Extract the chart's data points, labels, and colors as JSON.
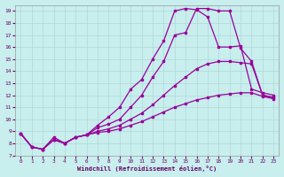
{
  "xlabel": "Windchill (Refroidissement éolien,°C)",
  "xlim": [
    -0.5,
    23.5
  ],
  "ylim": [
    7,
    19.5
  ],
  "yticks": [
    7,
    8,
    9,
    10,
    11,
    12,
    13,
    14,
    15,
    16,
    17,
    18,
    19
  ],
  "xticks": [
    0,
    1,
    2,
    3,
    4,
    5,
    6,
    7,
    8,
    9,
    10,
    11,
    12,
    13,
    14,
    15,
    16,
    17,
    18,
    19,
    20,
    21,
    22,
    23
  ],
  "background_color": "#c8eeee",
  "grid_color": "#b0d8d8",
  "line_color": "#990099",
  "lines": [
    {
      "x": [
        0,
        1,
        2,
        3,
        4,
        5,
        6,
        7,
        8,
        9,
        10,
        11,
        12,
        13,
        14,
        15,
        16,
        17,
        18,
        19,
        20,
        21,
        22,
        23
      ],
      "y": [
        8.8,
        7.7,
        7.5,
        8.5,
        8.0,
        8.5,
        8.7,
        9.5,
        10.2,
        11.0,
        12.5,
        13.3,
        15.0,
        16.5,
        19.0,
        19.2,
        19.1,
        18.5,
        16.0,
        16.0,
        16.1,
        12.5,
        12.2,
        12.0
      ]
    },
    {
      "x": [
        0,
        1,
        2,
        3,
        4,
        5,
        6,
        7,
        8,
        9,
        10,
        11,
        12,
        13,
        14,
        15,
        16,
        17,
        18,
        19,
        20,
        21,
        22,
        23
      ],
      "y": [
        8.8,
        7.7,
        7.5,
        8.3,
        8.0,
        8.5,
        8.7,
        9.3,
        9.6,
        10.0,
        11.0,
        12.0,
        13.5,
        14.8,
        17.0,
        17.2,
        19.2,
        19.2,
        19.0,
        19.0,
        15.9,
        14.8,
        12.0,
        11.8
      ]
    },
    {
      "x": [
        0,
        1,
        2,
        3,
        4,
        5,
        6,
        7,
        8,
        9,
        10,
        11,
        12,
        13,
        14,
        15,
        16,
        17,
        18,
        19,
        20,
        21,
        22,
        23
      ],
      "y": [
        8.8,
        7.7,
        7.5,
        8.3,
        8.0,
        8.5,
        8.7,
        9.0,
        9.2,
        9.5,
        10.0,
        10.5,
        11.2,
        12.0,
        12.8,
        13.5,
        14.2,
        14.6,
        14.8,
        14.8,
        14.7,
        14.6,
        12.0,
        11.8
      ]
    },
    {
      "x": [
        0,
        1,
        2,
        3,
        4,
        5,
        6,
        7,
        8,
        9,
        10,
        11,
        12,
        13,
        14,
        15,
        16,
        17,
        18,
        19,
        20,
        21,
        22,
        23
      ],
      "y": [
        8.8,
        7.7,
        7.5,
        8.3,
        8.0,
        8.5,
        8.7,
        8.9,
        9.0,
        9.2,
        9.5,
        9.8,
        10.2,
        10.6,
        11.0,
        11.3,
        11.6,
        11.8,
        12.0,
        12.1,
        12.2,
        12.2,
        11.9,
        11.7
      ]
    }
  ]
}
